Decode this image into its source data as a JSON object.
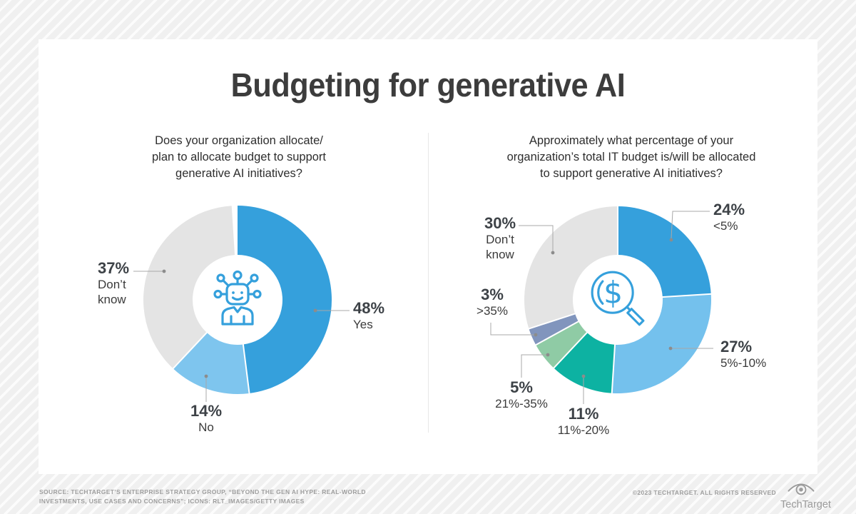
{
  "title": "Budgeting for generative AI",
  "colors": {
    "accent_blue": "#35A0DC",
    "leader_line": "#a8a8a8",
    "leader_dot": "#8c8c8c",
    "card_background": "#ffffff",
    "page_background": "#f0f0f0"
  },
  "chart_data": [
    {
      "type": "pie",
      "subtype": "donut",
      "title": "Does your organization allocate/plan to allocate budget to support generative AI initiatives?",
      "question_lines": [
        "Does your organization allocate/",
        "plan to allocate budget to support",
        "generative AI initiatives?"
      ],
      "center_icon": "ai-robot-icon",
      "start_angle_deg": 0,
      "direction": "clockwise",
      "angle_total": 100,
      "segments": [
        {
          "label": "Yes",
          "value": 48,
          "pct_text": "48%",
          "callout_lines": [
            "Yes"
          ],
          "color": "#35A0DC"
        },
        {
          "label": "No",
          "value": 14,
          "pct_text": "14%",
          "callout_lines": [
            "No"
          ],
          "color": "#7EC5EE"
        },
        {
          "label": "Don’t know",
          "value": 37,
          "pct_text": "37%",
          "callout_lines": [
            "Don’t",
            "know"
          ],
          "color": "#E4E4E4"
        }
      ]
    },
    {
      "type": "pie",
      "subtype": "donut",
      "title": "Approximately what percentage of your organization’s total IT budget is/will be allocated to support generative AI initiatives?",
      "question_lines": [
        "Approximately what percentage of your",
        "organization’s total IT budget is/will be allocated",
        "to support generative AI initiatives?"
      ],
      "center_icon": "budget-search-icon",
      "start_angle_deg": 0,
      "direction": "clockwise",
      "angle_total": 100,
      "segments": [
        {
          "label": "<5%",
          "value": 24,
          "pct_text": "24%",
          "callout_lines": [
            "<5%"
          ],
          "color": "#35A0DC"
        },
        {
          "label": "5%-10%",
          "value": 27,
          "pct_text": "27%",
          "callout_lines": [
            "5%-10%"
          ],
          "color": "#74C1ED"
        },
        {
          "label": "11%-20%",
          "value": 11,
          "pct_text": "11%",
          "callout_lines": [
            "11%-20%"
          ],
          "color": "#0DB2A2"
        },
        {
          "label": "21%-35%",
          "value": 5,
          "pct_text": "5%",
          "callout_lines": [
            "21%-35%"
          ],
          "color": "#8FCBA5"
        },
        {
          "label": ">35%",
          "value": 3,
          "pct_text": "3%",
          "callout_lines": [
            ">35%"
          ],
          "color": "#8195BD"
        },
        {
          "label": "Don’t know",
          "value": 30,
          "pct_text": "30%",
          "callout_lines": [
            "Don’t",
            "know"
          ],
          "color": "#E4E4E4"
        }
      ]
    }
  ],
  "footer": {
    "source_lines": [
      "SOURCE: TECHTARGET’S ENTERPRISE STRATEGY GROUP, “BEYOND THE GEN AI HYPE: REAL-WORLD",
      "INVESTMENTS, USE CASES AND CONCERNS”; ICONS: RLT_IMAGES/GETTY IMAGES"
    ],
    "copyright": "©2023 TECHTARGET. ALL RIGHTS RESERVED",
    "brand": "TechTarget"
  }
}
